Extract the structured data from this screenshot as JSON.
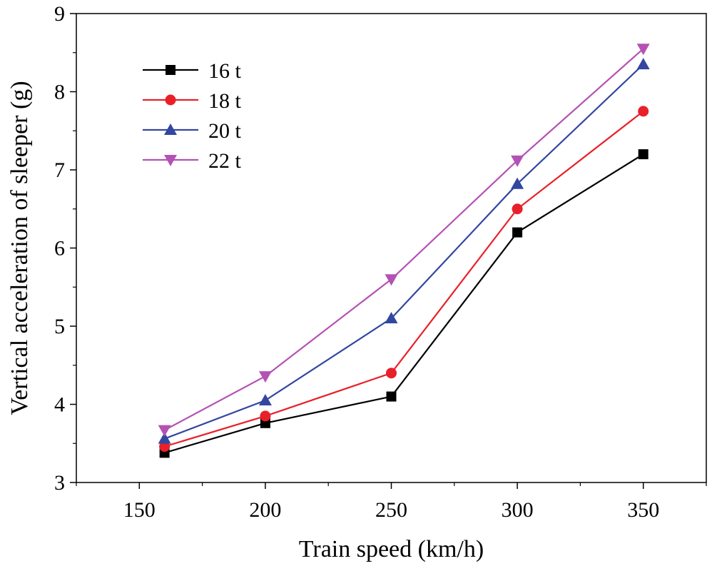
{
  "chart_data": {
    "type": "line",
    "title": "",
    "xlabel": "Train speed (km/h)",
    "ylabel": "Vertical acceleration of sleeper (g)",
    "xlim": [
      125,
      375
    ],
    "ylim": [
      3,
      9
    ],
    "xticks": [
      150,
      200,
      250,
      300,
      350
    ],
    "yticks": [
      3,
      4,
      5,
      6,
      7,
      8,
      9
    ],
    "grid": false,
    "legend_position": "top-left",
    "x": [
      160,
      200,
      250,
      300,
      350
    ],
    "series": [
      {
        "name": "16 t",
        "color": "#000000",
        "marker": "square",
        "values": [
          3.38,
          3.76,
          4.1,
          6.2,
          7.2
        ]
      },
      {
        "name": "18 t",
        "color": "#e8202a",
        "marker": "circle",
        "values": [
          3.46,
          3.85,
          4.4,
          6.5,
          7.75
        ]
      },
      {
        "name": "20 t",
        "color": "#3346a0",
        "marker": "triangle-up",
        "values": [
          3.56,
          4.05,
          5.1,
          6.82,
          8.35
        ]
      },
      {
        "name": "22 t",
        "color": "#b452b4",
        "marker": "triangle-down",
        "values": [
          3.67,
          4.36,
          5.6,
          7.12,
          8.55
        ]
      }
    ]
  }
}
